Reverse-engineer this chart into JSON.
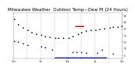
{
  "title": "Milwaukee Weather  Outdoor Temp—Dew Pt (24 Hours)",
  "title_color": "#000000",
  "background_color": "#ffffff",
  "temp_color": "#000000",
  "dew_color": "#0000cc",
  "red_color": "#cc0000",
  "blue_line_color": "#0000cc",
  "xlim": [
    0,
    24
  ],
  "ylim": [
    -5,
    65
  ],
  "temp_x": [
    0.2,
    1.0,
    2.0,
    3.2,
    4.0,
    5.0,
    6.0,
    7.0,
    8.0,
    9.2,
    10.0,
    11.0,
    12.2,
    13.0,
    14.2,
    15.0,
    16.0,
    17.0,
    18.2,
    19.0,
    20.0,
    21.2,
    22.0,
    23.0,
    23.8
  ],
  "temp_y": [
    55,
    47,
    42,
    38,
    35,
    33,
    31,
    29,
    28,
    27,
    26,
    26,
    27,
    29,
    33,
    35,
    37,
    38,
    39,
    40,
    41,
    42,
    43,
    43,
    44
  ],
  "dew_x": [
    0.2,
    1.0,
    2.0,
    3.2,
    6.0,
    7.0,
    8.5,
    13.0,
    14.0,
    15.0,
    16.0,
    18.5,
    22.0
  ],
  "dew_y": [
    22,
    20,
    18,
    16,
    13,
    12,
    8,
    5,
    5,
    5,
    4,
    4,
    2
  ],
  "red_x_start": 13.5,
  "red_x_end": 15.5,
  "red_y": 45,
  "blue_bar_x_start": 9.0,
  "blue_bar_x_end": 20.5,
  "blue_bar_y": -3,
  "blue_dot_x": 19.5,
  "blue_dot_y": 8,
  "vlines_x": [
    0,
    3,
    6,
    9,
    12,
    15,
    18,
    21,
    24
  ],
  "xtick_labels": [
    "12a",
    "",
    "6a",
    "",
    "12p",
    "",
    "6p",
    "",
    "12a"
  ],
  "ytick_positions": [
    0,
    10,
    20,
    30,
    40,
    50,
    60
  ],
  "ytick_labels": [
    "0",
    "10",
    "20",
    "30",
    "40",
    "50",
    "60"
  ],
  "marker_size": 1.5,
  "title_fontsize": 4.0
}
